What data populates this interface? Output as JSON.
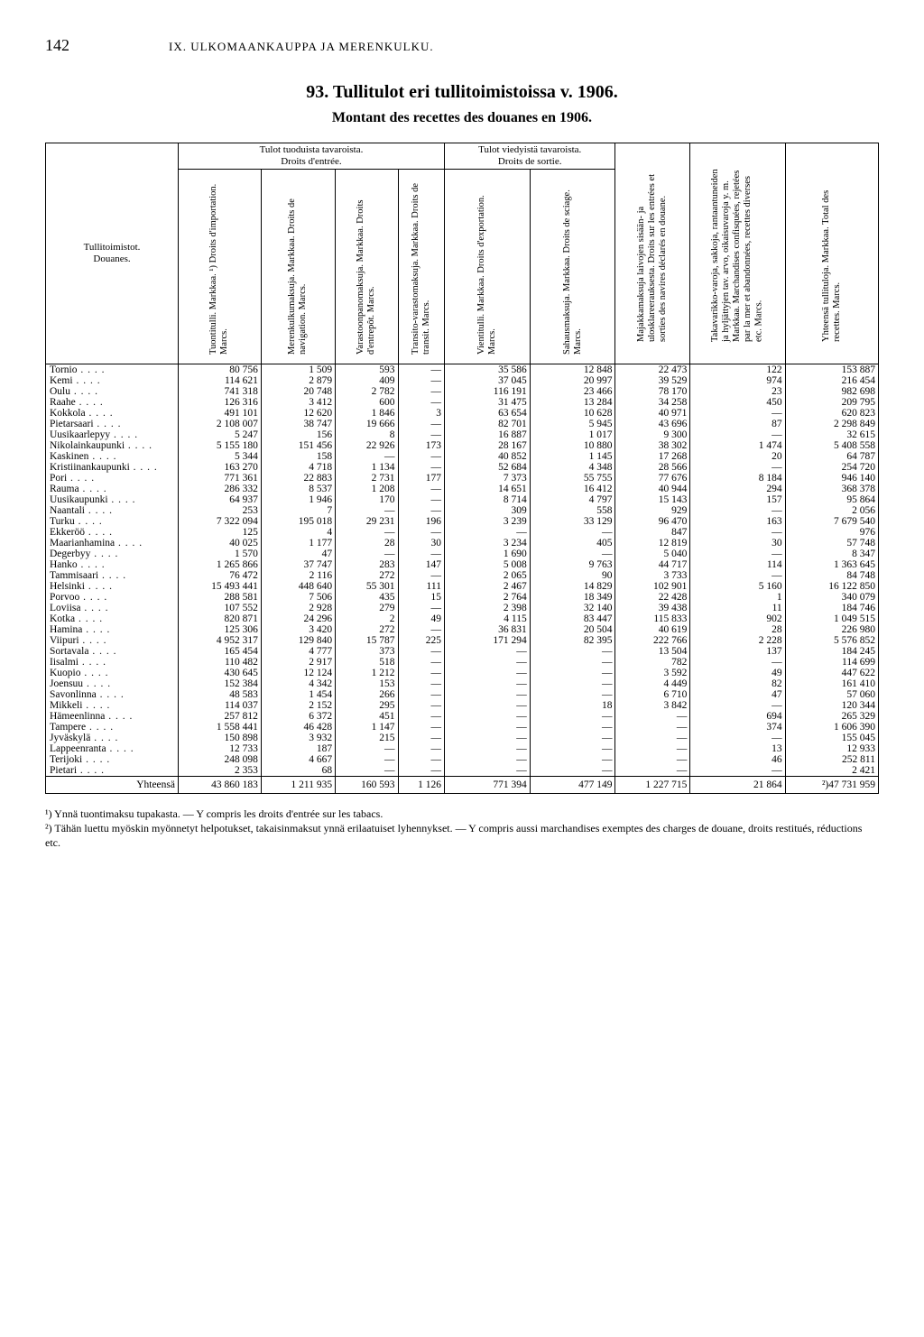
{
  "page_number": "142",
  "chapter": "IX. ULKOMAANKAUPPA JA MERENKULKU.",
  "title": "93. Tullitulot eri tullitoimistoissa v. 1906.",
  "subtitle": "Montant des recettes des douanes en 1906.",
  "headers": {
    "left_label": "Tullitoimistot.\nDouanes.",
    "import_group": "Tulot tuoduista tavaroista.\nDroits d'entrée.",
    "export_group": "Tulot viedyistä tavaroista.\nDroits de sortie.",
    "col1": "Tuontitulli. Markkaa. ¹)\nDroits d'importation. Marcs.",
    "col2": "Merenkulkumaksuja. Markkaa.\nDroits de navigation. Marcs.",
    "col3": "Varastoonpanomaksuja. Markkaa.\nDroits d'entrepôt. Marcs.",
    "col4": "Transito-varastomaksuja. Markkaa.\nDroits de transit. Marcs.",
    "col5": "Vientitulli. Markkaa.\nDroits d'exportation. Marcs.",
    "col6": "Sahausmaksuja. Markkaa.\nDroits de sciage. Marcs.",
    "col7": "Majakkamaksuja laivojen sisään- ja ulosklareerauksesta.\nDroits sur les entrées et sorties des navires déclarés en douane.",
    "col8": "Takavarikko-varoja, sakkoja, rantaantuneiden ja hyljättyjen tav. arvo, oikaisuvaroja y. m. Markkaa.\nMarchandises confisquées, rejetées par la mer et abandonnées, recettes diverses etc. Marcs.",
    "col9": "Yhteensä tullituloja. Markkaa.\nTotal des recettes. Marcs."
  },
  "rows": [
    {
      "loc": "Tornio",
      "c": [
        "80 756",
        "1 509",
        "593",
        "—",
        "35 586",
        "12 848",
        "22 473",
        "122",
        "153 887"
      ]
    },
    {
      "loc": "Kemi",
      "c": [
        "114 621",
        "2 879",
        "409",
        "—",
        "37 045",
        "20 997",
        "39 529",
        "974",
        "216 454"
      ]
    },
    {
      "loc": "Oulu",
      "c": [
        "741 318",
        "20 748",
        "2 782",
        "—",
        "116 191",
        "23 466",
        "78 170",
        "23",
        "982 698"
      ]
    },
    {
      "loc": "Raahe",
      "c": [
        "126 316",
        "3 412",
        "600",
        "—",
        "31 475",
        "13 284",
        "34 258",
        "450",
        "209 795"
      ]
    },
    {
      "loc": "Kokkola",
      "c": [
        "491 101",
        "12 620",
        "1 846",
        "3",
        "63 654",
        "10 628",
        "40 971",
        "—",
        "620 823"
      ]
    },
    {
      "loc": "Pietarsaari",
      "c": [
        "2 108 007",
        "38 747",
        "19 666",
        "—",
        "82 701",
        "5 945",
        "43 696",
        "87",
        "2 298 849"
      ]
    },
    {
      "loc": "Uusikaarlepyy",
      "c": [
        "5 247",
        "156",
        "8",
        "—",
        "16 887",
        "1 017",
        "9 300",
        "—",
        "32 615"
      ]
    },
    {
      "loc": "Nikolainkaupunki",
      "c": [
        "5 155 180",
        "151 456",
        "22 926",
        "173",
        "28 167",
        "10 880",
        "38 302",
        "1 474",
        "5 408 558"
      ]
    },
    {
      "loc": "Kaskinen",
      "c": [
        "5 344",
        "158",
        "—",
        "—",
        "40 852",
        "1 145",
        "17 268",
        "20",
        "64 787"
      ]
    },
    {
      "loc": "Kristiinankaupunki",
      "c": [
        "163 270",
        "4 718",
        "1 134",
        "—",
        "52 684",
        "4 348",
        "28 566",
        "—",
        "254 720"
      ]
    },
    {
      "loc": "Pori",
      "c": [
        "771 361",
        "22 883",
        "2 731",
        "177",
        "7 373",
        "55 755",
        "77 676",
        "8 184",
        "946 140"
      ]
    },
    {
      "loc": "Rauma",
      "c": [
        "286 332",
        "8 537",
        "1 208",
        "—",
        "14 651",
        "16 412",
        "40 944",
        "294",
        "368 378"
      ]
    },
    {
      "loc": "Uusikaupunki",
      "c": [
        "64 937",
        "1 946",
        "170",
        "—",
        "8 714",
        "4 797",
        "15 143",
        "157",
        "95 864"
      ]
    },
    {
      "loc": "Naantali",
      "c": [
        "253",
        "7",
        "—",
        "—",
        "309",
        "558",
        "929",
        "—",
        "2 056"
      ]
    },
    {
      "loc": "Turku",
      "c": [
        "7 322 094",
        "195 018",
        "29 231",
        "196",
        "3 239",
        "33 129",
        "96 470",
        "163",
        "7 679 540"
      ]
    },
    {
      "loc": "Ekkeröö",
      "c": [
        "125",
        "4",
        "—",
        "—",
        "—",
        "—",
        "847",
        "—",
        "976"
      ]
    },
    {
      "loc": "Maarianhamina",
      "c": [
        "40 025",
        "1 177",
        "28",
        "30",
        "3 234",
        "405",
        "12 819",
        "30",
        "57 748"
      ]
    },
    {
      "loc": "Degerbyy",
      "c": [
        "1 570",
        "47",
        "—",
        "—",
        "1 690",
        "—",
        "5 040",
        "—",
        "8 347"
      ]
    },
    {
      "loc": "Hanko",
      "c": [
        "1 265 866",
        "37 747",
        "283",
        "147",
        "5 008",
        "9 763",
        "44 717",
        "114",
        "1 363 645"
      ]
    },
    {
      "loc": "Tammisaari",
      "c": [
        "76 472",
        "2 116",
        "272",
        "—",
        "2 065",
        "90",
        "3 733",
        "—",
        "84 748"
      ]
    },
    {
      "loc": "Helsinki",
      "c": [
        "15 493 441",
        "448 640",
        "55 301",
        "111",
        "2 467",
        "14 829",
        "102 901",
        "5 160",
        "16 122 850"
      ]
    },
    {
      "loc": "Porvoo",
      "c": [
        "288 581",
        "7 506",
        "435",
        "15",
        "2 764",
        "18 349",
        "22 428",
        "1",
        "340 079"
      ]
    },
    {
      "loc": "Loviisa",
      "c": [
        "107 552",
        "2 928",
        "279",
        "—",
        "2 398",
        "32 140",
        "39 438",
        "11",
        "184 746"
      ]
    },
    {
      "loc": "Kotka",
      "c": [
        "820 871",
        "24 296",
        "2",
        "49",
        "4 115",
        "83 447",
        "115 833",
        "902",
        "1 049 515"
      ]
    },
    {
      "loc": "Hamina",
      "c": [
        "125 306",
        "3 420",
        "272",
        "—",
        "36 831",
        "20 504",
        "40 619",
        "28",
        "226 980"
      ]
    },
    {
      "loc": "Viipuri",
      "c": [
        "4 952 317",
        "129 840",
        "15 787",
        "225",
        "171 294",
        "82 395",
        "222 766",
        "2 228",
        "5 576 852"
      ]
    },
    {
      "loc": "Sortavala",
      "c": [
        "165 454",
        "4 777",
        "373",
        "—",
        "—",
        "—",
        "13 504",
        "137",
        "184 245"
      ]
    },
    {
      "loc": "Iisalmi",
      "c": [
        "110 482",
        "2 917",
        "518",
        "—",
        "—",
        "—",
        "782",
        "—",
        "114 699"
      ]
    },
    {
      "loc": "Kuopio",
      "c": [
        "430 645",
        "12 124",
        "1 212",
        "—",
        "—",
        "—",
        "3 592",
        "49",
        "447 622"
      ]
    },
    {
      "loc": "Joensuu",
      "c": [
        "152 384",
        "4 342",
        "153",
        "—",
        "—",
        "—",
        "4 449",
        "82",
        "161 410"
      ]
    },
    {
      "loc": "Savonlinna",
      "c": [
        "48 583",
        "1 454",
        "266",
        "—",
        "—",
        "—",
        "6 710",
        "47",
        "57 060"
      ]
    },
    {
      "loc": "Mikkeli",
      "c": [
        "114 037",
        "2 152",
        "295",
        "—",
        "—",
        "18",
        "3 842",
        "—",
        "120 344"
      ]
    },
    {
      "loc": "Hämeenlinna",
      "c": [
        "257 812",
        "6 372",
        "451",
        "—",
        "—",
        "—",
        "—",
        "694",
        "265 329"
      ]
    },
    {
      "loc": "Tampere",
      "c": [
        "1 558 441",
        "46 428",
        "1 147",
        "—",
        "—",
        "—",
        "—",
        "374",
        "1 606 390"
      ]
    },
    {
      "loc": "Jyväskylä",
      "c": [
        "150 898",
        "3 932",
        "215",
        "—",
        "—",
        "—",
        "—",
        "—",
        "155 045"
      ]
    },
    {
      "loc": "Lappeenranta",
      "c": [
        "12 733",
        "187",
        "—",
        "—",
        "—",
        "—",
        "—",
        "13",
        "12 933"
      ]
    },
    {
      "loc": "Terijoki",
      "c": [
        "248 098",
        "4 667",
        "—",
        "—",
        "—",
        "—",
        "—",
        "46",
        "252 811"
      ]
    },
    {
      "loc": "Pietari",
      "c": [
        "2 353",
        "68",
        "—",
        "—",
        "—",
        "—",
        "—",
        "—",
        "2 421"
      ]
    }
  ],
  "totals": {
    "label": "Yhteensä",
    "c": [
      "43 860 183",
      "1 211 935",
      "160 593",
      "1 126",
      "771 394",
      "477 149",
      "1 227 715",
      "21 864",
      "²)47 731 959"
    ]
  },
  "footnotes": {
    "f1": "¹) Ynnä tuontimaksu tupakasta. — Y compris les droits d'entrée sur les tabacs.",
    "f2": "²) Tähän luettu myöskin myönnetyt helpotukset, takaisinmaksut ynnä erilaatuiset lyhennykset. — Y compris aussi marchandises exemptes des charges de douane, droits restitués, réductions etc."
  }
}
